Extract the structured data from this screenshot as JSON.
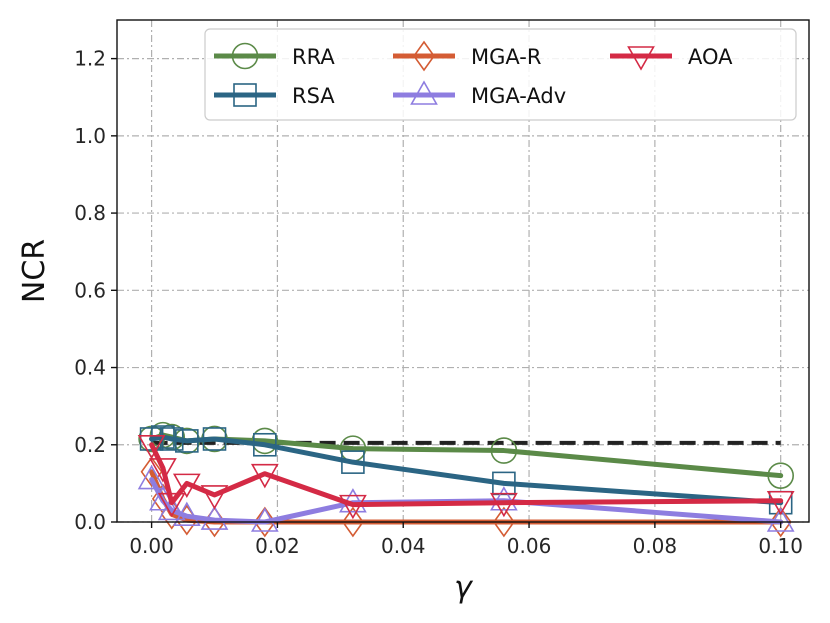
{
  "chart_data": {
    "type": "line",
    "xlabel": "γ",
    "ylabel": "NCR",
    "xlim": [
      -0.0055,
      0.1045
    ],
    "ylim": [
      0.0,
      1.3
    ],
    "x_ticks": [
      0.0,
      0.02,
      0.04,
      0.06,
      0.08,
      0.1
    ],
    "x_tick_labels": [
      "0.00",
      "0.02",
      "0.04",
      "0.06",
      "0.08",
      "0.10"
    ],
    "y_ticks": [
      0.0,
      0.2,
      0.4,
      0.6,
      0.8,
      1.0,
      1.2
    ],
    "y_tick_labels": [
      "0.0",
      "0.2",
      "0.4",
      "0.6",
      "0.8",
      "1.0",
      "1.2"
    ],
    "grid": true,
    "legend_position": "top-right",
    "reference_line": {
      "y": 0.205,
      "x_range": [
        0.0,
        0.1
      ],
      "style": "dashed",
      "color": "#222222"
    },
    "series": [
      {
        "name": "RRA",
        "color": "#5b8a48",
        "marker": "circle",
        "x": [
          0.0,
          0.0018,
          0.0032,
          0.0056,
          0.01,
          0.018,
          0.032,
          0.056,
          0.1
        ],
        "y": [
          0.215,
          0.225,
          0.22,
          0.21,
          0.215,
          0.21,
          0.19,
          0.185,
          0.12
        ]
      },
      {
        "name": "RSA",
        "color": "#2b6584",
        "marker": "square",
        "x": [
          0.0,
          0.0018,
          0.0032,
          0.0056,
          0.01,
          0.018,
          0.032,
          0.056,
          0.1
        ],
        "y": [
          0.215,
          0.22,
          0.215,
          0.21,
          0.215,
          0.2,
          0.155,
          0.1,
          0.05
        ]
      },
      {
        "name": "MGA-R",
        "color": "#d45c34",
        "marker": "diamond",
        "x": [
          0.0,
          0.0018,
          0.0032,
          0.0056,
          0.01,
          0.018,
          0.032,
          0.056,
          0.1
        ],
        "y": [
          0.13,
          0.06,
          0.02,
          0.005,
          0.0,
          0.0,
          0.0,
          0.0,
          0.0
        ]
      },
      {
        "name": "MGA-Adv",
        "color": "#8e7de0",
        "marker": "triangle-up",
        "x": [
          0.0,
          0.0018,
          0.0032,
          0.0056,
          0.01,
          0.018,
          0.032,
          0.056,
          0.1
        ],
        "y": [
          0.11,
          0.055,
          0.03,
          0.015,
          0.005,
          0.0,
          0.05,
          0.055,
          0.0
        ]
      },
      {
        "name": "AOA",
        "color": "#d42a45",
        "marker": "triangle-down",
        "x": [
          0.0,
          0.0018,
          0.0032,
          0.0056,
          0.01,
          0.018,
          0.032,
          0.056,
          0.1
        ],
        "y": [
          0.2,
          0.14,
          0.05,
          0.1,
          0.07,
          0.125,
          0.045,
          0.05,
          0.055
        ]
      }
    ]
  }
}
